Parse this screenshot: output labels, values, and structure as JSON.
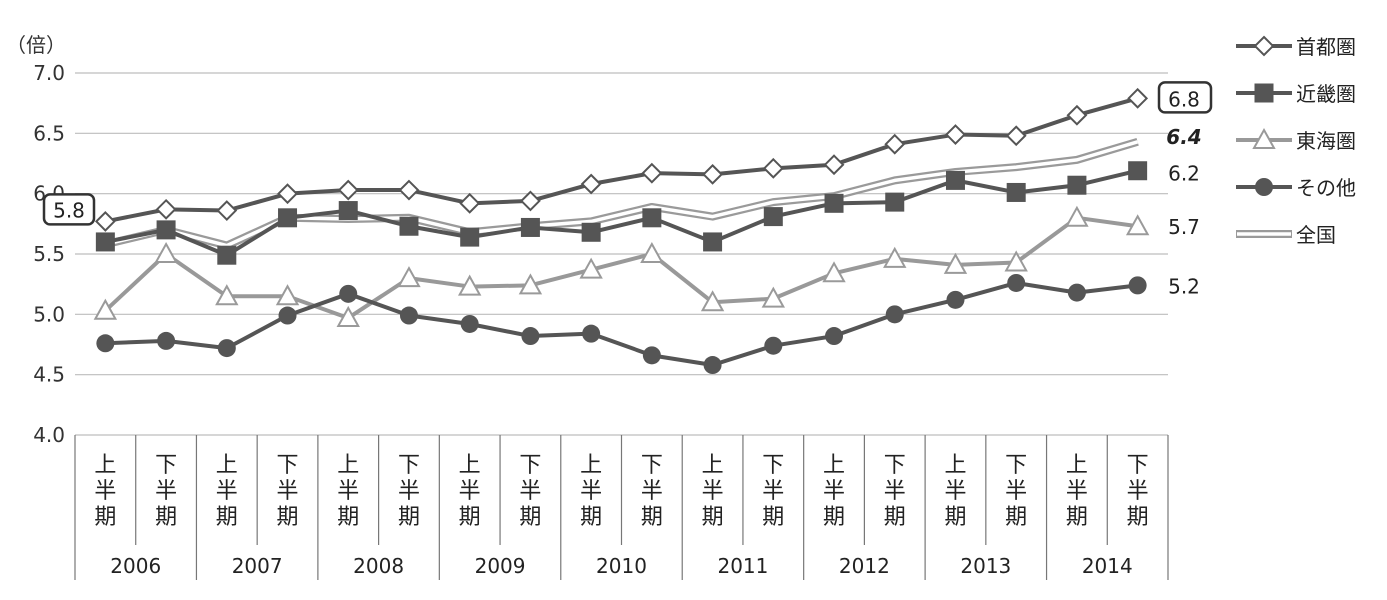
{
  "chart_data": {
    "type": "line",
    "y_unit": "（倍）",
    "ylim": [
      4.0,
      7.0
    ],
    "yticks": [
      "7.0",
      "6.5",
      "6.0",
      "5.5",
      "5.0",
      "4.5",
      "4.0"
    ],
    "ytick_values": [
      7.0,
      6.5,
      6.0,
      5.5,
      5.0,
      4.5,
      4.0
    ],
    "half_labels": [
      [
        "上",
        "半",
        "期"
      ],
      [
        "下",
        "半",
        "期"
      ]
    ],
    "years": [
      "2006",
      "2007",
      "2008",
      "2009",
      "2010",
      "2011",
      "2012",
      "2013",
      "2014"
    ],
    "series": [
      {
        "name": "首都圏",
        "marker": "diamond",
        "color": "#555555",
        "values": [
          5.77,
          5.87,
          5.86,
          6.0,
          6.03,
          6.03,
          5.92,
          5.94,
          6.08,
          6.17,
          6.16,
          6.21,
          6.24,
          6.41,
          6.49,
          6.48,
          6.65,
          6.79
        ]
      },
      {
        "name": "近畿圏",
        "marker": "square",
        "color": "#555555",
        "values": [
          5.6,
          5.7,
          5.49,
          5.8,
          5.86,
          5.73,
          5.64,
          5.72,
          5.68,
          5.8,
          5.6,
          5.81,
          5.92,
          5.93,
          6.11,
          6.01,
          6.07,
          6.19
        ]
      },
      {
        "name": "東海圏",
        "marker": "triangle",
        "color": "#999999",
        "values": [
          5.03,
          5.5,
          5.15,
          5.15,
          4.97,
          5.3,
          5.23,
          5.24,
          5.37,
          5.5,
          5.1,
          5.13,
          5.34,
          5.46,
          5.41,
          5.43,
          5.8,
          5.73
        ]
      },
      {
        "name": "その他",
        "marker": "circle",
        "color": "#555555",
        "values": [
          4.76,
          4.78,
          4.72,
          4.99,
          5.17,
          4.99,
          4.92,
          4.82,
          4.84,
          4.66,
          4.58,
          4.74,
          4.82,
          5.0,
          5.12,
          5.26,
          5.18,
          5.24
        ]
      },
      {
        "name": "全国",
        "marker": "double-line",
        "color": "#9a9a9a",
        "values": [
          5.58,
          5.7,
          5.57,
          5.8,
          5.79,
          5.8,
          5.68,
          5.73,
          5.77,
          5.89,
          5.81,
          5.93,
          5.98,
          6.11,
          6.18,
          6.22,
          6.28,
          6.43
        ]
      }
    ],
    "end_labels": [
      {
        "text": "6.8",
        "value": 6.79,
        "boxed": true,
        "bold": false,
        "italic": false
      },
      {
        "text": "6.4",
        "value": 6.43,
        "boxed": false,
        "bold": true,
        "italic": true
      },
      {
        "text": "6.2",
        "value": 6.19,
        "boxed": false,
        "bold": false,
        "italic": false
      },
      {
        "text": "5.7",
        "value": 5.73,
        "boxed": false,
        "bold": false,
        "italic": false
      },
      {
        "text": "5.2",
        "value": 5.24,
        "boxed": false,
        "bold": false,
        "italic": false
      }
    ],
    "start_label": {
      "text": "5.8",
      "value": 5.77,
      "boxed": true
    },
    "legend_position": "top-right",
    "grid": true
  }
}
